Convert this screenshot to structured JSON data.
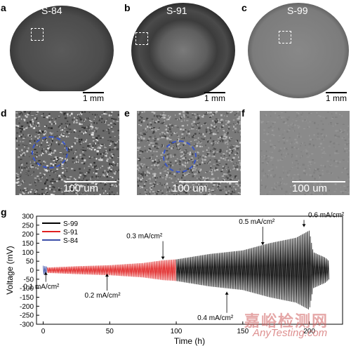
{
  "panels": {
    "a": {
      "letter": "a",
      "label": "S-84",
      "scale": "1 mm"
    },
    "b": {
      "letter": "b",
      "label": "S-91",
      "scale": "1 mm"
    },
    "c": {
      "letter": "c",
      "label": "S-99",
      "scale": "1 mm"
    },
    "d": {
      "letter": "d",
      "scale": "100 um"
    },
    "e": {
      "letter": "e",
      "scale": "100 um"
    },
    "f": {
      "letter": "f",
      "scale": "100 um"
    },
    "g": {
      "letter": "g"
    }
  },
  "watermark": {
    "cn": "嘉峪检测网",
    "en": "AnyTesting.com"
  },
  "colors": {
    "s99": "#000000",
    "s91": "#e02020",
    "s84": "#3a4ea8"
  },
  "chart_data": {
    "type": "line",
    "xlabel": "Time (h)",
    "ylabel": "Voltage (mV)",
    "xlim": [
      -5,
      225
    ],
    "ylim": [
      -300,
      300
    ],
    "xticks": [
      0,
      50,
      100,
      150,
      200
    ],
    "yticks": [
      -300,
      -250,
      -200,
      -150,
      -100,
      -50,
      0,
      50,
      100,
      150,
      200,
      250,
      300
    ],
    "legend": {
      "placement": "top-left",
      "entries": [
        "S-99",
        "S-91",
        "S-84"
      ]
    },
    "series": [
      {
        "name": "S-84",
        "color": "#3a4ea8",
        "x_range": [
          0,
          3
        ],
        "amplitude_mV": [
          [
            0,
            25
          ],
          [
            3,
            20
          ]
        ]
      },
      {
        "name": "S-91",
        "color": "#e02020",
        "x_range": [
          3,
          100
        ],
        "amplitude_mV": [
          [
            3,
            15
          ],
          [
            25,
            22
          ],
          [
            50,
            28
          ],
          [
            75,
            40
          ],
          [
            90,
            55
          ],
          [
            100,
            60
          ]
        ]
      },
      {
        "name": "S-99",
        "color": "#000000",
        "x_range": [
          100,
          215
        ],
        "amplitude_mV": [
          [
            100,
            60
          ],
          [
            125,
            90
          ],
          [
            150,
            110
          ],
          [
            170,
            150
          ],
          [
            190,
            180
          ],
          [
            200,
            220
          ],
          [
            203,
            100
          ],
          [
            212,
            70
          ],
          [
            215,
            50
          ]
        ]
      }
    ],
    "annotations": [
      {
        "text": "0.1 mA/cm²",
        "x": 2,
        "y": -10
      },
      {
        "text": "0.2 mA/cm²",
        "x": 48,
        "y": -20
      },
      {
        "text": "0.3 mA/cm²",
        "x": 90,
        "y": 60
      },
      {
        "text": "0.4 mA/cm²",
        "x": 138,
        "y": -120
      },
      {
        "text": "0.5 mA/cm²",
        "x": 165,
        "y": 140
      },
      {
        "text": "0.6 mA/cm²",
        "x": 196,
        "y": 240
      }
    ]
  }
}
